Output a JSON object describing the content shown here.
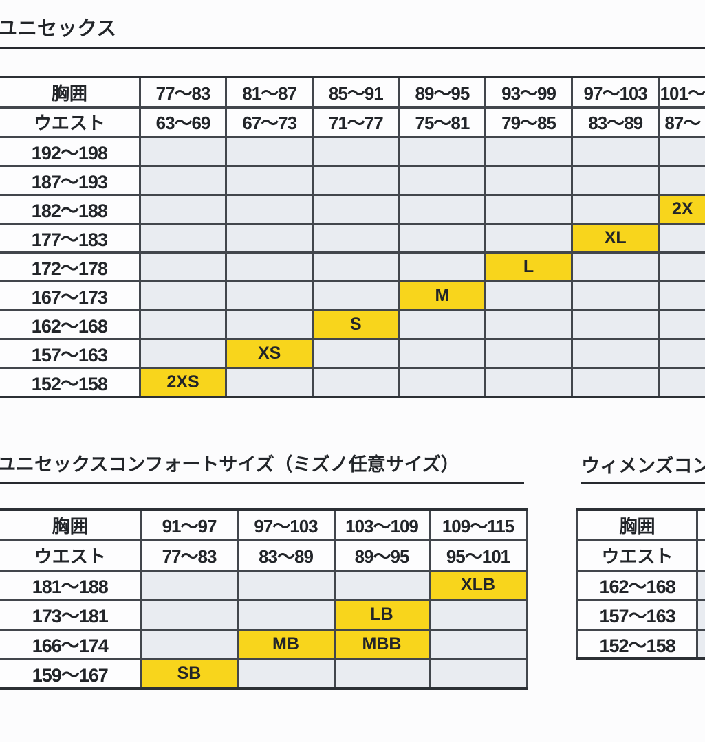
{
  "colors": {
    "highlight": "#f8d51c",
    "cell_gray": "#e9ecf1",
    "cell_white": "#fdfdfe",
    "border": "#42464c",
    "border_outer": "#2c3035",
    "text": "#222529",
    "rule": "#26292e"
  },
  "sections": [
    {
      "title": "ユニセックス",
      "table": {
        "corner_labels": [
          "胸囲",
          "ウエスト"
        ],
        "columns": [
          {
            "chest": "77〜83",
            "waist": "63〜69"
          },
          {
            "chest": "81〜87",
            "waist": "67〜73"
          },
          {
            "chest": "85〜91",
            "waist": "71〜77"
          },
          {
            "chest": "89〜95",
            "waist": "75〜81"
          },
          {
            "chest": "93〜99",
            "waist": "79〜85"
          },
          {
            "chest": "97〜103",
            "waist": "83〜89"
          },
          {
            "chest": "101〜",
            "waist": "87〜"
          }
        ],
        "rows": [
          {
            "label": "192〜198",
            "sizes": {}
          },
          {
            "label": "187〜193",
            "sizes": {}
          },
          {
            "label": "182〜188",
            "sizes": {
              "6": "2X"
            }
          },
          {
            "label": "177〜183",
            "sizes": {
              "5": "XL"
            }
          },
          {
            "label": "172〜178",
            "sizes": {
              "4": "L"
            }
          },
          {
            "label": "167〜173",
            "sizes": {
              "3": "M"
            }
          },
          {
            "label": "162〜168",
            "sizes": {
              "2": "S"
            }
          },
          {
            "label": "157〜163",
            "sizes": {
              "1": "XS"
            }
          },
          {
            "label": "152〜158",
            "sizes": {
              "0": "2XS"
            }
          }
        ]
      }
    },
    {
      "title": "ユニセックスコンフォートサイズ（ミズノ任意サイズ）",
      "table": {
        "corner_labels": [
          "胸囲",
          "ウエスト"
        ],
        "columns": [
          {
            "chest": "91〜97",
            "waist": "77〜83"
          },
          {
            "chest": "97〜103",
            "waist": "83〜89"
          },
          {
            "chest": "103〜109",
            "waist": "89〜95"
          },
          {
            "chest": "109〜115",
            "waist": "95〜101"
          }
        ],
        "rows": [
          {
            "label": "181〜188",
            "sizes": {
              "3": "XLB"
            }
          },
          {
            "label": "173〜181",
            "sizes": {
              "2": "LB"
            }
          },
          {
            "label": "166〜174",
            "sizes": {
              "1": "MB",
              "2": "MBB"
            }
          },
          {
            "label": "159〜167",
            "sizes": {
              "0": "SB"
            }
          }
        ]
      }
    },
    {
      "title": "ウィメンズコン",
      "table": {
        "corner_labels": [
          "胸囲",
          "ウエスト"
        ],
        "columns": [
          {
            "chest": "",
            "waist": ""
          }
        ],
        "rows": [
          {
            "label": "162〜168",
            "sizes": {}
          },
          {
            "label": "157〜163",
            "sizes": {}
          },
          {
            "label": "152〜158",
            "sizes": {}
          }
        ]
      }
    }
  ]
}
